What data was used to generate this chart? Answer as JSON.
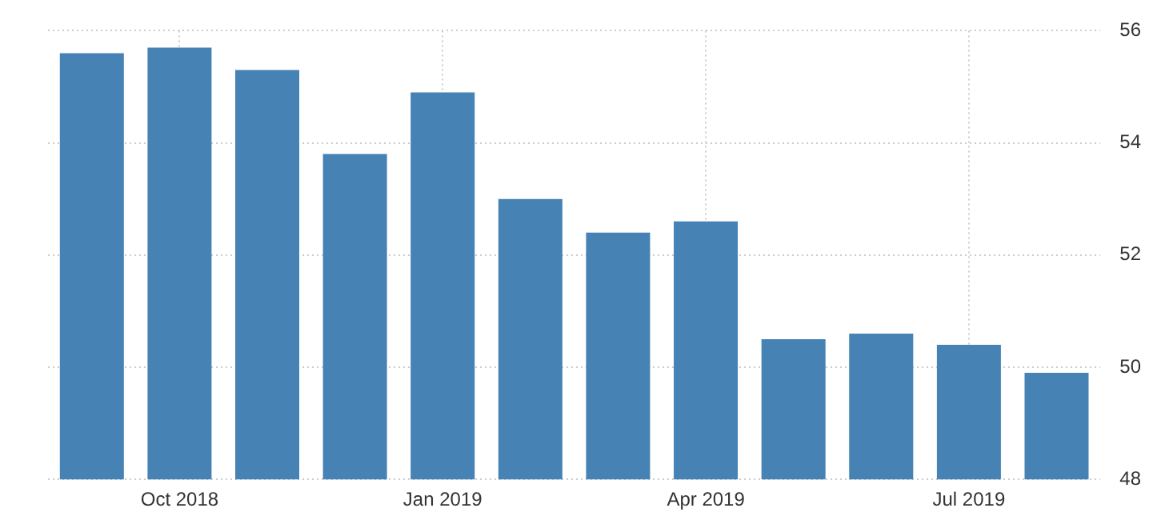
{
  "chart_data": {
    "type": "bar",
    "categories": [
      null,
      "Oct 2018",
      null,
      null,
      "Jan 2019",
      null,
      null,
      "Apr 2019",
      null,
      null,
      "Jul 2019",
      null
    ],
    "values": [
      55.6,
      55.7,
      55.3,
      53.8,
      54.9,
      53.0,
      52.4,
      52.6,
      50.5,
      50.6,
      50.4,
      49.9
    ],
    "color": "#4682b4",
    "ylim": [
      48,
      56
    ],
    "yticks": [
      48,
      50,
      52,
      54,
      56
    ],
    "grid": true,
    "legend": false
  }
}
